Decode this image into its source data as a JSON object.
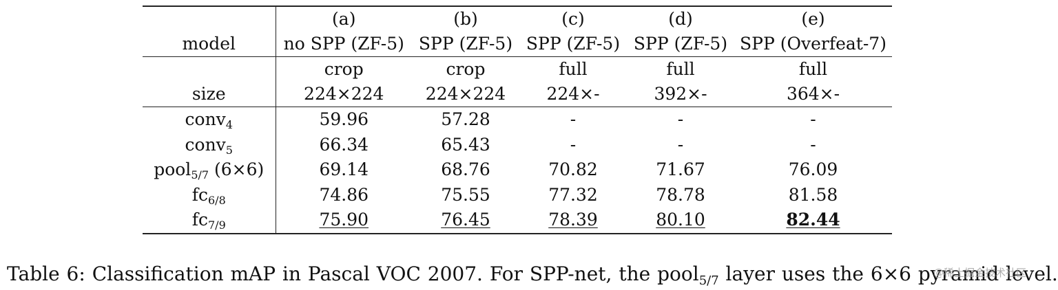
{
  "table": {
    "headers": {
      "letters": [
        "(a)",
        "(b)",
        "(c)",
        "(d)",
        "(e)"
      ],
      "model_label": "model",
      "models": [
        "no SPP (ZF-5)",
        "SPP (ZF-5)",
        "SPP (ZF-5)",
        "SPP (ZF-5)",
        "SPP (Overfeat-7)"
      ],
      "crop_modes": [
        "crop",
        "crop",
        "full",
        "full",
        "full"
      ],
      "size_label": "size",
      "sizes": [
        "224×224",
        "224×224",
        "224×-",
        "392×-",
        "364×-"
      ]
    },
    "rows": [
      {
        "label_base": "conv",
        "label_sub": "4",
        "label_suffix": "",
        "values": [
          "59.96",
          "57.28",
          "-",
          "-",
          "-"
        ]
      },
      {
        "label_base": "conv",
        "label_sub": "5",
        "label_suffix": "",
        "values": [
          "66.34",
          "65.43",
          "-",
          "-",
          "-"
        ]
      },
      {
        "label_base": "pool",
        "label_sub": "5/7",
        "label_suffix": " (6×6)",
        "values": [
          "69.14",
          "68.76",
          "70.82",
          "71.67",
          "76.09"
        ]
      },
      {
        "label_base": "fc",
        "label_sub": "6/8",
        "label_suffix": "",
        "values": [
          "74.86",
          "75.55",
          "77.32",
          "78.78",
          "81.58"
        ]
      },
      {
        "label_base": "fc",
        "label_sub": "7/9",
        "label_suffix": "",
        "values": [
          "75.90",
          "76.45",
          "78.39",
          "80.10",
          "82.44"
        ]
      }
    ]
  },
  "caption": {
    "part1": "Table 6: Classification mAP in Pascal VOC 2007. For SPP-net, the pool",
    "sub": "5/7",
    "part2": " layer uses the 6×6 pyramid level."
  },
  "watermark": "@稀土掘金技术社区"
}
